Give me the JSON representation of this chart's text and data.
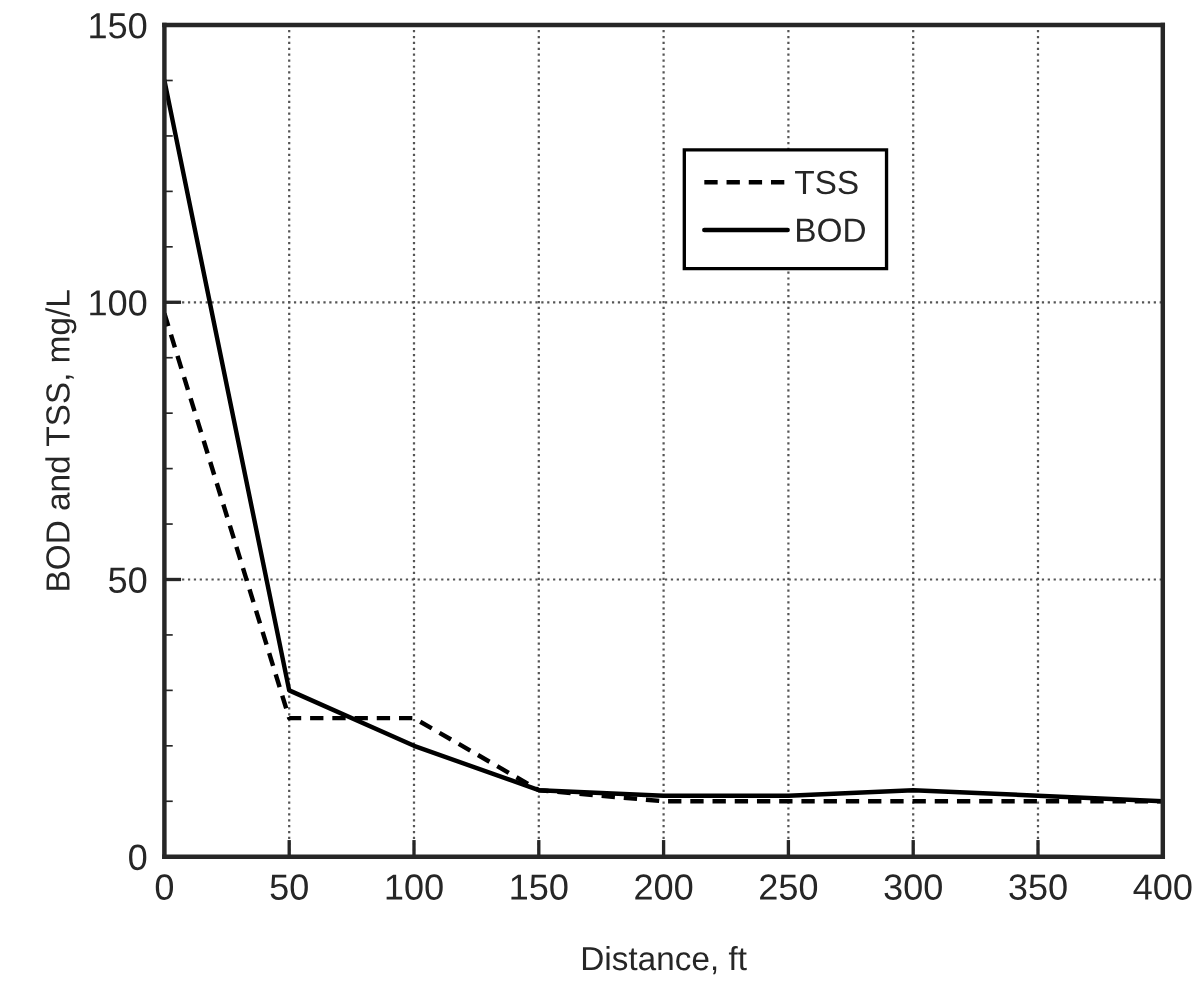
{
  "chart_data": {
    "type": "line",
    "xlabel": "Distance, ft",
    "ylabel": "BOD and TSS, mg/L",
    "x": [
      0,
      50,
      100,
      150,
      200,
      250,
      300,
      350,
      400
    ],
    "series": [
      {
        "name": "TSS",
        "color": "#000000",
        "line_style": "dashed",
        "values": [
          98,
          25,
          25,
          12,
          10,
          10,
          10,
          10,
          10
        ]
      },
      {
        "name": "BOD",
        "color": "#000000",
        "line_style": "solid",
        "values": [
          140,
          30,
          20,
          12,
          11,
          11,
          12,
          11,
          10
        ]
      }
    ],
    "xlim": [
      0,
      400
    ],
    "ylim": [
      0,
      150
    ],
    "xticks": [
      0,
      50,
      100,
      150,
      200,
      250,
      300,
      350,
      400
    ],
    "yticks": [
      0,
      50,
      100,
      150
    ],
    "grid": true,
    "legend": "top right",
    "marker": "none"
  }
}
